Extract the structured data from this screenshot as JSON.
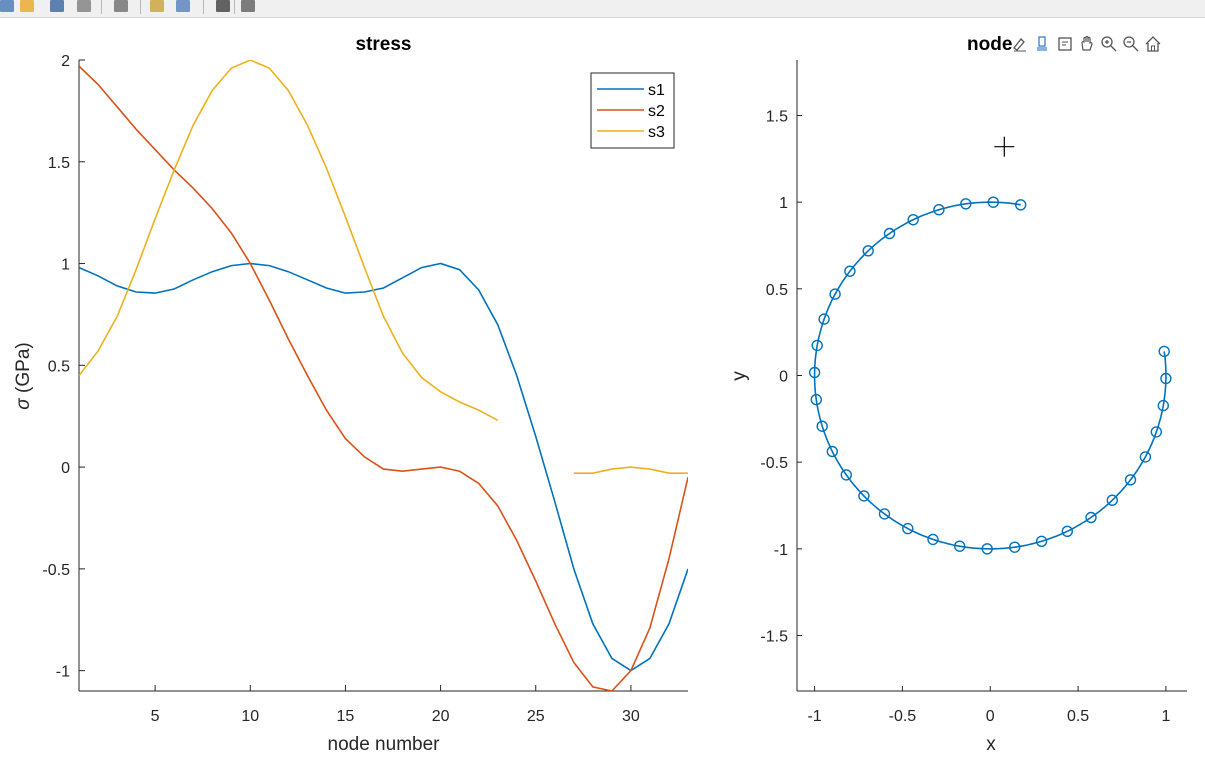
{
  "toolbar": {
    "buttons": [
      "new-figure-icon",
      "open-file-icon",
      "save-icon",
      "print-icon",
      "link-icon",
      "insert-colorbar-icon",
      "insert-legend-icon",
      "pointer-icon",
      "property-editor-icon"
    ]
  },
  "axes_toolbar": {
    "buttons": [
      "brush-edit-icon",
      "data-brush-icon",
      "data-tips-icon",
      "pan-hand-icon",
      "zoom-in-icon",
      "zoom-out-icon",
      "home-icon"
    ]
  },
  "colors": {
    "s1": "#0072BD",
    "s2": "#D95319",
    "s3": "#EDB120",
    "nodes": "#0072BD"
  },
  "chart_data": [
    {
      "type": "line",
      "title": "stress",
      "xlabel": "node number",
      "ylabel": "σ (GPa)",
      "ylabel_symbol": "σ",
      "ylabel_unit": "(GPa)",
      "xlim": [
        1,
        33
      ],
      "ylim": [
        -1.1,
        2
      ],
      "xticks": [
        5,
        10,
        15,
        20,
        25,
        30
      ],
      "yticks": [
        -1,
        -0.5,
        0,
        0.5,
        1,
        1.5,
        2
      ],
      "ytick_labels": [
        "-1",
        "-0.5",
        "0",
        "0.5",
        "1",
        "1.5",
        "2"
      ],
      "legend_position": "top-right",
      "x": [
        1,
        2,
        3,
        4,
        5,
        6,
        7,
        8,
        9,
        10,
        11,
        12,
        13,
        14,
        15,
        16,
        17,
        18,
        19,
        20,
        21,
        22,
        23,
        24,
        25,
        26,
        27,
        28,
        29,
        30,
        31,
        32,
        33
      ],
      "series": [
        {
          "name": "s1",
          "values": [
            0.98,
            0.94,
            0.89,
            0.86,
            0.855,
            0.875,
            0.92,
            0.96,
            0.99,
            1.0,
            0.99,
            0.96,
            0.92,
            0.88,
            0.855,
            0.86,
            0.88,
            0.93,
            0.98,
            1.0,
            0.97,
            0.87,
            0.7,
            0.45,
            0.15,
            -0.17,
            -0.5,
            -0.77,
            -0.94,
            -1.0,
            -0.94,
            -0.77,
            -0.5
          ]
        },
        {
          "name": "s2",
          "values": [
            1.97,
            1.88,
            1.77,
            1.66,
            1.56,
            1.46,
            1.37,
            1.27,
            1.15,
            1.0,
            0.82,
            0.63,
            0.45,
            0.28,
            0.14,
            0.05,
            -0.01,
            -0.02,
            -0.01,
            0.0,
            -0.02,
            -0.08,
            -0.19,
            -0.36,
            -0.56,
            -0.77,
            -0.96,
            -1.08,
            -1.1,
            -1.0,
            -0.79,
            -0.45,
            -0.05
          ]
        },
        {
          "name": "s3",
          "values": [
            0.45,
            0.57,
            0.74,
            0.97,
            1.22,
            1.46,
            1.68,
            1.85,
            1.96,
            2.0,
            1.96,
            1.85,
            1.68,
            1.47,
            1.23,
            0.98,
            0.74,
            0.56,
            0.44,
            0.37,
            0.32,
            0.28,
            0.23,
            null,
            null,
            null,
            -0.03,
            -0.03,
            -0.01,
            0.0,
            -0.01,
            -0.03,
            -0.03
          ]
        }
      ]
    },
    {
      "type": "scatter",
      "title": "node",
      "xlabel": "x",
      "ylabel": "y",
      "xlim": [
        -1.1,
        1.12
      ],
      "ylim": [
        -1.82,
        1.82
      ],
      "xticks": [
        -1,
        -0.5,
        0,
        0.5,
        1
      ],
      "yticks": [
        -1.5,
        -1,
        -0.5,
        0,
        0.5,
        1,
        1.5
      ],
      "marker": "circle",
      "angle_deg_start": 80,
      "angle_deg_step": 9,
      "count": 33,
      "radius": 1,
      "cursor_marker": [
        0.08,
        1.32
      ]
    }
  ]
}
